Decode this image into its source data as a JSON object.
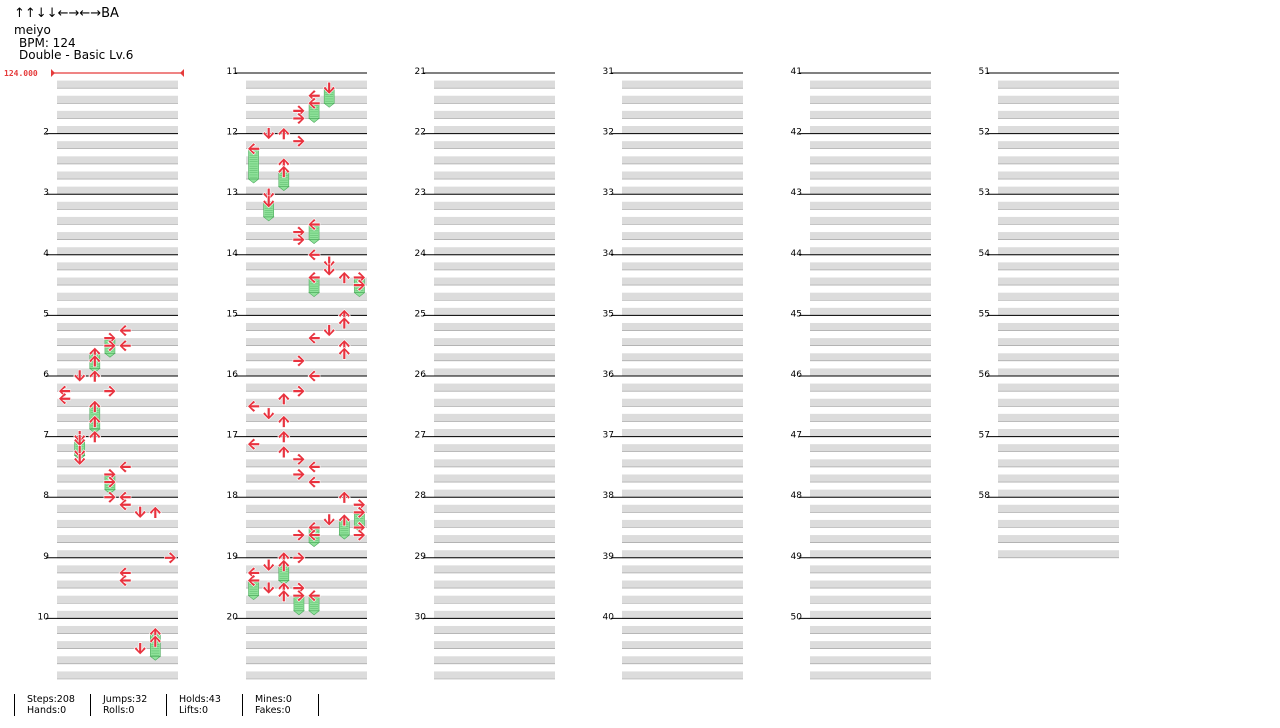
{
  "song": {
    "title": "↑↑↓↓←→←→BA",
    "artist": "meiyo",
    "bpm_text": "BPM: 124",
    "difficulty": "Double - Basic Lv.6"
  },
  "chart": {
    "bpm_marker": "124.000",
    "measure_numbers": [
      "2",
      "3",
      "4",
      "5",
      "6",
      "7",
      "8",
      "9",
      "10",
      "11",
      "12",
      "13",
      "14",
      "15",
      "16",
      "17",
      "18",
      "19",
      "20",
      "21",
      "22",
      "23",
      "24",
      "25",
      "26",
      "27",
      "28",
      "29",
      "30",
      "31",
      "32",
      "33",
      "34",
      "35",
      "36",
      "37",
      "38",
      "39",
      "40",
      "41",
      "42",
      "43",
      "44",
      "45",
      "46",
      "47",
      "48",
      "49",
      "50",
      "51",
      "52",
      "53",
      "54",
      "55",
      "56",
      "57",
      "58"
    ],
    "total_measures": 58,
    "measures_per_column": 10,
    "lanes": [
      "left",
      "down",
      "up",
      "right",
      "left",
      "down",
      "up",
      "right"
    ],
    "colors": {
      "tap": "#e8333f",
      "hold_body": "#8fe29a",
      "bpm": "#e53b3b",
      "stripe": "#dcdcdc"
    },
    "notes": [
      {
        "m": 5,
        "b": 1,
        "l": 4
      },
      {
        "m": 5,
        "b": 1.5,
        "l": 3,
        "h": 0.5
      },
      {
        "m": 5,
        "b": 2,
        "l": 3
      },
      {
        "m": 5,
        "b": 2,
        "l": 4
      },
      {
        "m": 5,
        "b": 2.5,
        "l": 2,
        "h": 0.5
      },
      {
        "m": 5,
        "b": 3,
        "l": 2
      },
      {
        "m": 6,
        "b": 0,
        "l": 1
      },
      {
        "m": 6,
        "b": 0,
        "l": 2
      },
      {
        "m": 6,
        "b": 1,
        "l": 0
      },
      {
        "m": 6,
        "b": 1,
        "l": 3
      },
      {
        "m": 6,
        "b": 1.5,
        "l": 0
      },
      {
        "m": 6,
        "b": 2,
        "l": 2,
        "h": 0.75
      },
      {
        "m": 6,
        "b": 3,
        "l": 2
      },
      {
        "m": 7,
        "b": 0,
        "l": 2
      },
      {
        "m": 7,
        "b": 0,
        "l": 1
      },
      {
        "m": 7,
        "b": 0.25,
        "l": 1,
        "h": 0.5
      },
      {
        "m": 7,
        "b": 1,
        "l": 1
      },
      {
        "m": 7,
        "b": 1.5,
        "l": 1
      },
      {
        "m": 7,
        "b": 2,
        "l": 4
      },
      {
        "m": 7,
        "b": 2.5,
        "l": 3,
        "h": 0.5
      },
      {
        "m": 7,
        "b": 3,
        "l": 3
      },
      {
        "m": 8,
        "b": 0,
        "l": 3
      },
      {
        "m": 8,
        "b": 0,
        "l": 4
      },
      {
        "m": 8,
        "b": 0.5,
        "l": 4
      },
      {
        "m": 8,
        "b": 1,
        "l": 5
      },
      {
        "m": 8,
        "b": 1,
        "l": 6
      },
      {
        "m": 9,
        "b": 0,
        "l": 7
      },
      {
        "m": 9,
        "b": 1,
        "l": 4
      },
      {
        "m": 9,
        "b": 1.5,
        "l": 4
      },
      {
        "m": 10,
        "b": 1,
        "l": 6,
        "h": 0.75
      },
      {
        "m": 10,
        "b": 1.5,
        "l": 6
      },
      {
        "m": 10,
        "b": 2,
        "l": 5
      },
      {
        "m": 10,
        "b": 2,
        "l": 5
      },
      {
        "m": 11,
        "b": 1,
        "l": 5,
        "h": 0.5
      },
      {
        "m": 11,
        "b": 1.5,
        "l": 4
      },
      {
        "m": 11,
        "b": 2,
        "l": 4,
        "h": 0.5
      },
      {
        "m": 11,
        "b": 2.5,
        "l": 3
      },
      {
        "m": 11,
        "b": 3,
        "l": 3
      },
      {
        "m": 12,
        "b": 0,
        "l": 1
      },
      {
        "m": 12,
        "b": 0,
        "l": 2
      },
      {
        "m": 12,
        "b": 0.5,
        "l": 3
      },
      {
        "m": 12,
        "b": 1,
        "l": 0,
        "h": 1
      },
      {
        "m": 12,
        "b": 2,
        "l": 2
      },
      {
        "m": 12,
        "b": 2.5,
        "l": 2,
        "h": 0.5
      },
      {
        "m": 13,
        "b": 0,
        "l": 1
      },
      {
        "m": 13,
        "b": 0.5,
        "l": 1,
        "h": 0.5
      },
      {
        "m": 13,
        "b": 2,
        "l": 4,
        "h": 0.5
      },
      {
        "m": 13,
        "b": 2.5,
        "l": 3
      },
      {
        "m": 13,
        "b": 3,
        "l": 3
      },
      {
        "m": 14,
        "b": 0,
        "l": 4
      },
      {
        "m": 14,
        "b": 0.5,
        "l": 5
      },
      {
        "m": 14,
        "b": 1,
        "l": 5
      },
      {
        "m": 14,
        "b": 1.5,
        "l": 6
      },
      {
        "m": 14,
        "b": 1.5,
        "l": 4,
        "h": 0.5
      },
      {
        "m": 14,
        "b": 1.5,
        "l": 7,
        "h": 0.5
      },
      {
        "m": 14,
        "b": 2,
        "l": 7
      },
      {
        "m": 15,
        "b": 0,
        "l": 6
      },
      {
        "m": 15,
        "b": 0.5,
        "l": 6
      },
      {
        "m": 15,
        "b": 1,
        "l": 5
      },
      {
        "m": 15,
        "b": 1.5,
        "l": 4
      },
      {
        "m": 15,
        "b": 2,
        "l": 6
      },
      {
        "m": 15,
        "b": 2.5,
        "l": 6
      },
      {
        "m": 15,
        "b": 3,
        "l": 3
      },
      {
        "m": 16,
        "b": 0,
        "l": 4
      },
      {
        "m": 16,
        "b": 1,
        "l": 3
      },
      {
        "m": 16,
        "b": 1.5,
        "l": 2
      },
      {
        "m": 16,
        "b": 2,
        "l": 0
      },
      {
        "m": 16,
        "b": 2.5,
        "l": 1
      },
      {
        "m": 16,
        "b": 3,
        "l": 2
      },
      {
        "m": 17,
        "b": 0,
        "l": 2
      },
      {
        "m": 17,
        "b": 0.5,
        "l": 0
      },
      {
        "m": 17,
        "b": 1,
        "l": 2
      },
      {
        "m": 17,
        "b": 1.5,
        "l": 3
      },
      {
        "m": 17,
        "b": 2,
        "l": 4
      },
      {
        "m": 17,
        "b": 2.5,
        "l": 3
      },
      {
        "m": 17,
        "b": 3,
        "l": 4
      },
      {
        "m": 18,
        "b": 0,
        "l": 6
      },
      {
        "m": 18,
        "b": 0.5,
        "l": 7
      },
      {
        "m": 18,
        "b": 1,
        "l": 7,
        "h": 0.5
      },
      {
        "m": 18,
        "b": 1.5,
        "l": 5
      },
      {
        "m": 18,
        "b": 1.5,
        "l": 6,
        "h": 0.5
      },
      {
        "m": 18,
        "b": 2,
        "l": 4,
        "h": 0.5
      },
      {
        "m": 18,
        "b": 2,
        "l": 7
      },
      {
        "m": 18,
        "b": 2.5,
        "l": 3
      },
      {
        "m": 18,
        "b": 2.5,
        "l": 4
      },
      {
        "m": 18,
        "b": 2.5,
        "l": 7
      },
      {
        "m": 19,
        "b": 0,
        "l": 2
      },
      {
        "m": 19,
        "b": 0,
        "l": 3
      },
      {
        "m": 19,
        "b": 0.5,
        "l": 1
      },
      {
        "m": 19,
        "b": 0.5,
        "l": 2,
        "h": 0.5
      },
      {
        "m": 19,
        "b": 1,
        "l": 0
      },
      {
        "m": 19,
        "b": 1.5,
        "l": 0,
        "h": 0.5
      },
      {
        "m": 19,
        "b": 2,
        "l": 1
      },
      {
        "m": 19,
        "b": 2,
        "l": 2
      },
      {
        "m": 19,
        "b": 2,
        "l": 3
      },
      {
        "m": 19,
        "b": 2.5,
        "l": 2
      },
      {
        "m": 19,
        "b": 2.5,
        "l": 3,
        "h": 0.5
      },
      {
        "m": 19,
        "b": 2.5,
        "l": 4,
        "h": 0.5
      }
    ]
  },
  "stats": [
    {
      "a": "Steps:208",
      "b": "Hands:0"
    },
    {
      "a": "Jumps:32",
      "b": "Rolls:0"
    },
    {
      "a": "Holds:43",
      "b": "Lifts:0"
    },
    {
      "a": "Mines:0",
      "b": "Fakes:0"
    }
  ]
}
